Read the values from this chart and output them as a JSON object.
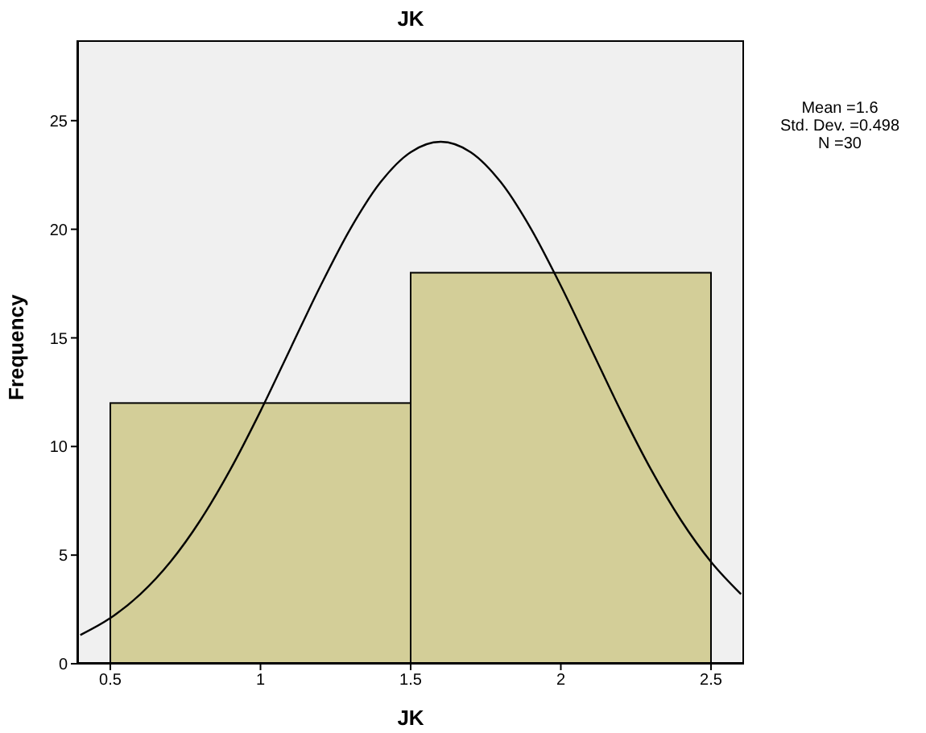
{
  "chart_data": {
    "type": "histogram",
    "title": "JK",
    "xlabel": "JK",
    "ylabel": "Frequency",
    "bins": [
      0.5,
      1.5,
      2.5
    ],
    "values": [
      12,
      18
    ],
    "color": "#d3ce98",
    "series": [
      {
        "type": "line",
        "color": "#000000",
        "x": [
          0.4,
          0.5,
          0.6,
          0.7,
          0.8,
          0.9,
          1.0,
          1.1,
          1.2,
          1.3,
          1.4,
          1.5,
          1.6,
          1.7,
          1.8,
          1.9,
          2.0,
          2.1,
          2.2,
          2.3,
          2.4,
          2.5,
          2.6
        ],
        "values": [
          1.32,
          2.1,
          3.2,
          4.69,
          6.61,
          8.95,
          11.63,
          14.52,
          17.4,
          20.04,
          22.17,
          23.55,
          24.03,
          23.55,
          22.17,
          20.04,
          17.4,
          14.52,
          11.63,
          8.95,
          6.61,
          4.69,
          3.2
        ]
      }
    ],
    "xlim": [
      0.39,
      2.61
    ],
    "xticks": [
      0.5,
      1,
      1.5,
      2,
      2.5
    ],
    "ylim": [
      0,
      28.7
    ],
    "yticks": [
      0,
      5,
      10,
      15,
      20,
      25
    ],
    "annotations": [
      "Mean =1.6",
      "Std. Dev. =0.498",
      "N =30"
    ]
  }
}
